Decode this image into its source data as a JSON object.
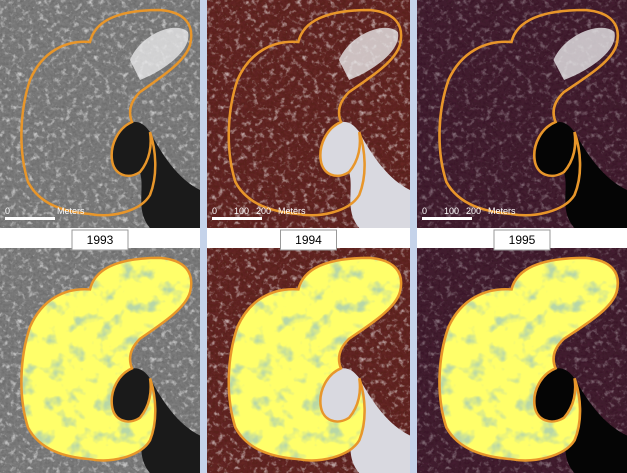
{
  "panels": [
    {
      "year": "1993",
      "scale": [
        "0",
        "Meters"
      ]
    },
    {
      "year": "1994",
      "scale": [
        "0",
        "100",
        "200",
        "Meters"
      ]
    },
    {
      "year": "1995",
      "scale": [
        "0",
        "100",
        "200",
        "Meters"
      ]
    }
  ]
}
